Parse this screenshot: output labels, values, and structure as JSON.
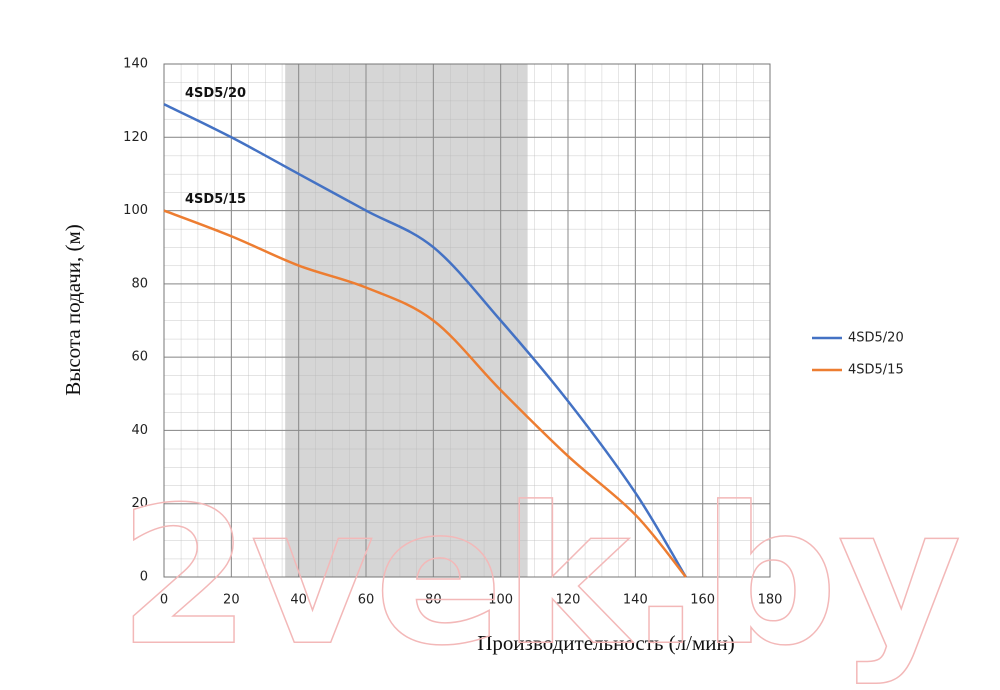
{
  "chart_data": {
    "type": "line",
    "x_label": "Производительность (л/мин)",
    "y_label": "Высота подачи, (м)",
    "watermark": "2vek.by",
    "xlim": [
      0,
      180
    ],
    "xticks": [
      0,
      20,
      40,
      60,
      80,
      100,
      120,
      140,
      160,
      180
    ],
    "ylim": [
      0,
      140
    ],
    "yticks": [
      0,
      20,
      40,
      60,
      80,
      100,
      120,
      140
    ],
    "grid": true,
    "shaded_range": [
      36,
      108
    ],
    "legend": "right",
    "series": [
      {
        "name": "4SD5/20",
        "color": "#4472c4",
        "x": [
          0,
          20,
          40,
          60,
          80,
          100,
          120,
          140,
          155
        ],
        "values": [
          129,
          120,
          110,
          100,
          90,
          70,
          48,
          23,
          0
        ]
      },
      {
        "name": "4SD5/15",
        "color": "#ed7d31",
        "x": [
          0,
          20,
          40,
          60,
          80,
          100,
          120,
          140,
          155
        ],
        "values": [
          100,
          93,
          85,
          79,
          70,
          51,
          33,
          17,
          0
        ]
      }
    ]
  }
}
